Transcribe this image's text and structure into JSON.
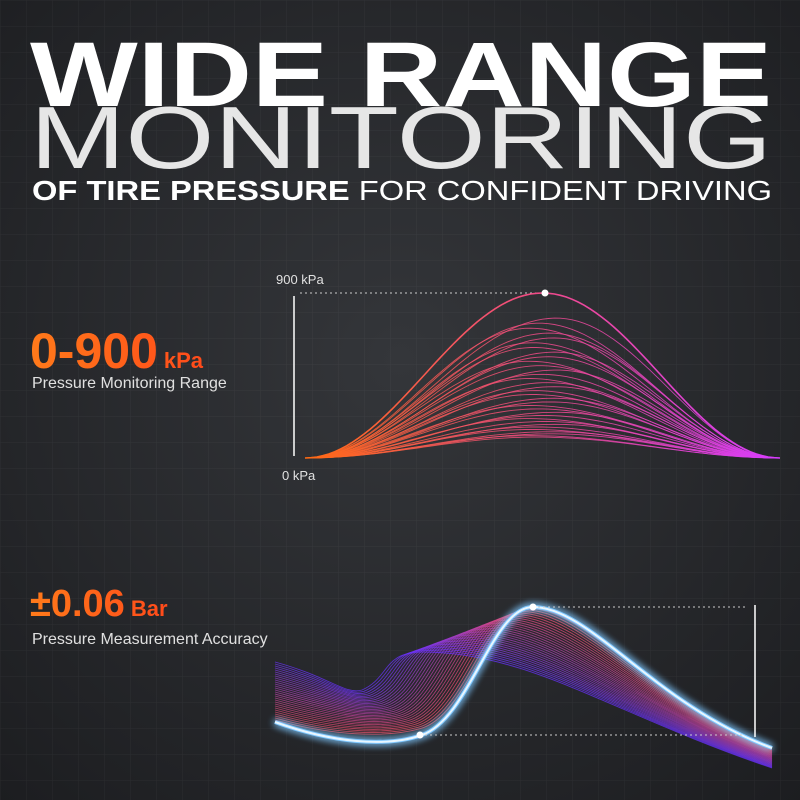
{
  "header": {
    "title_line1": "WIDE RANGE",
    "title_line2": "MONITORING",
    "subtitle_bold": "OF TIRE PRESSURE",
    "subtitle_light": "FOR CONFIDENT DRIVING"
  },
  "range": {
    "value": "0-900",
    "unit": "kPa",
    "label": "Pressure Monitoring Range",
    "axis_top": "900 kPa",
    "axis_bottom": "0 kPa"
  },
  "accuracy": {
    "value": "±0.06",
    "unit": "Bar",
    "label": "Pressure Measurement Accuracy"
  }
}
